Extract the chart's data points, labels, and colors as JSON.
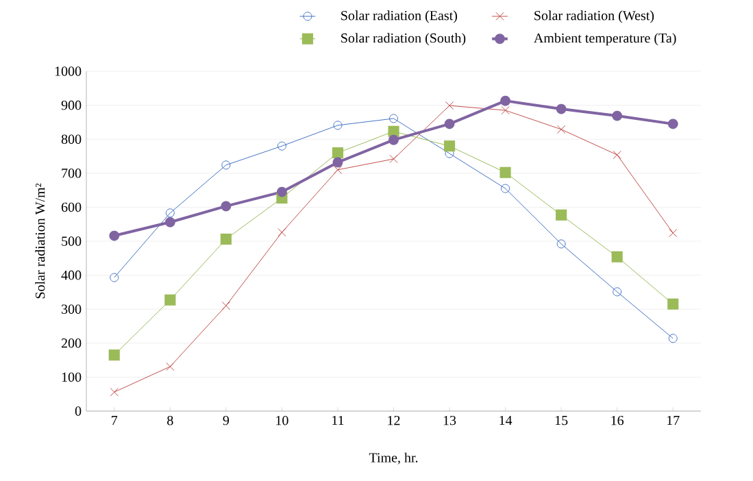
{
  "chart_data": {
    "type": "line",
    "xlabel": "Time, hr.",
    "ylabel": "Solar radiation W/m²",
    "categories": [
      "7",
      "8",
      "9",
      "10",
      "11",
      "12",
      "13",
      "14",
      "15",
      "16",
      "17"
    ],
    "series": [
      {
        "name": "Solar radiation (East)",
        "color": "#4472c4",
        "marker": "circle",
        "values": [
          393,
          583,
          724,
          780,
          841,
          861,
          758,
          655,
          492,
          351,
          214
        ]
      },
      {
        "name": "Solar radiation (West)",
        "color": "#c0504d",
        "marker": "cross",
        "values": [
          56,
          131,
          310,
          526,
          710,
          742,
          899,
          885,
          829,
          754,
          524
        ]
      },
      {
        "name": "Solar radiation (South)",
        "color": "#9bbb59",
        "marker": "square",
        "values": [
          165,
          327,
          506,
          627,
          760,
          823,
          780,
          702,
          577,
          454,
          315
        ]
      },
      {
        "name": "Ambient temperature (Ta)",
        "color": "#8064a2",
        "marker": "circle",
        "values": [
          516,
          556,
          603,
          645,
          732,
          798,
          845,
          913,
          889,
          869,
          845
        ]
      }
    ],
    "ylim": [
      0,
      1000
    ],
    "yticks": [
      0,
      100,
      200,
      300,
      400,
      500,
      600,
      700,
      800,
      900,
      1000
    ],
    "grid": "y",
    "legend": "top"
  }
}
